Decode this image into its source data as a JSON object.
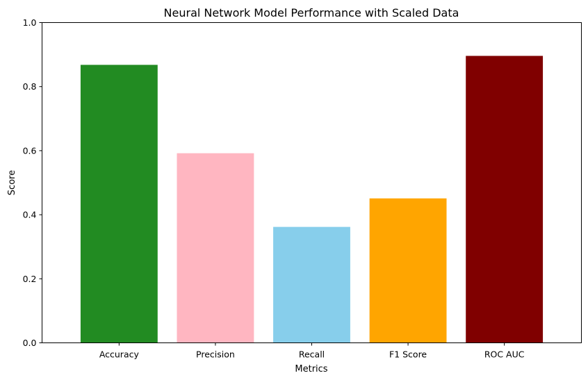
{
  "chart_data": {
    "type": "bar",
    "title": "Neural Network Model Performance with Scaled Data",
    "xlabel": "Metrics",
    "ylabel": "Score",
    "categories": [
      "Accuracy",
      "Precision",
      "Recall",
      "F1 Score",
      "ROC AUC"
    ],
    "values": [
      0.868,
      0.592,
      0.362,
      0.451,
      0.896
    ],
    "colors": [
      "#228b22",
      "#ffb6c1",
      "#87ceeb",
      "#ffa500",
      "#800000"
    ],
    "ylim": [
      0,
      1
    ],
    "yticks": [
      0.0,
      0.2,
      0.4,
      0.6,
      0.8,
      1.0
    ],
    "ytick_labels": [
      "0.0",
      "0.2",
      "0.4",
      "0.6",
      "0.8",
      "1.0"
    ],
    "grid": false,
    "legend": "none"
  }
}
